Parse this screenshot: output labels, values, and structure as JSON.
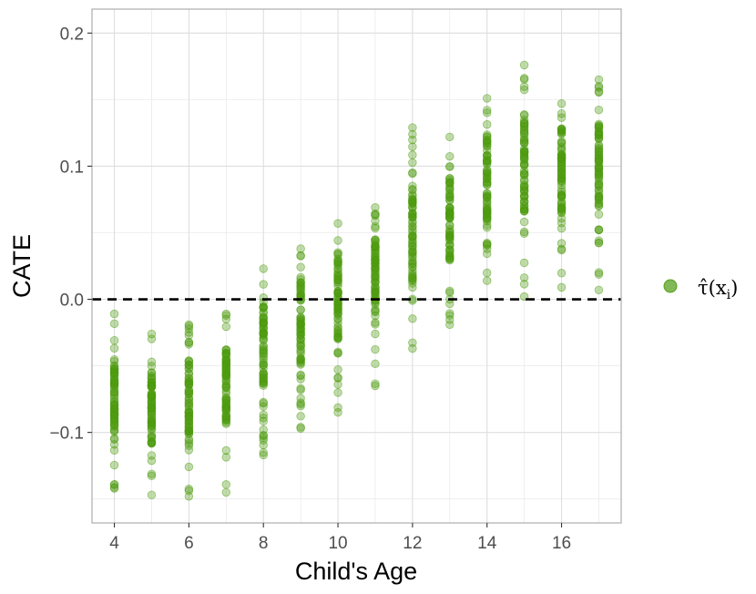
{
  "chart_data": {
    "type": "scatter",
    "title": "",
    "xlabel": "Child's Age",
    "ylabel": "CATE",
    "xlim": [
      3.4,
      17.6
    ],
    "ylim": [
      -0.168,
      0.218
    ],
    "x_ticks": [
      4,
      6,
      8,
      10,
      12,
      14,
      16
    ],
    "x_tick_labels": [
      "4",
      "6",
      "8",
      "10",
      "12",
      "14",
      "16"
    ],
    "y_ticks": [
      -0.1,
      0.0,
      0.1,
      0.2
    ],
    "y_tick_labels": [
      "−0.1",
      "0.0",
      "0.1",
      "0.2"
    ],
    "grid": true,
    "reference_line": {
      "y": 0.0,
      "style": "dashed",
      "color": "#000000"
    },
    "legend": {
      "position": "right",
      "label_main": "τ̂",
      "label_open": "(x",
      "label_sub": "i",
      "label_close": ")"
    },
    "point_color": "#4d9a0f",
    "point_alpha": 0.35,
    "series": [
      {
        "x_groups": [
          4,
          5,
          6,
          7,
          8,
          9,
          10,
          11,
          12,
          13,
          14,
          15,
          16,
          17
        ],
        "group_min": [
          -0.142,
          -0.147,
          -0.148,
          -0.145,
          -0.117,
          -0.097,
          -0.085,
          -0.065,
          -0.037,
          -0.019,
          0.014,
          0.002,
          0.009,
          0.007
        ],
        "group_max": [
          -0.011,
          -0.026,
          -0.019,
          -0.011,
          0.023,
          0.038,
          0.057,
          0.069,
          0.129,
          0.122,
          0.151,
          0.176,
          0.147,
          0.165
        ],
        "group_q_low": [
          -0.105,
          -0.108,
          -0.107,
          -0.095,
          -0.065,
          -0.05,
          -0.03,
          -0.01,
          0.01,
          0.03,
          0.06,
          0.065,
          0.065,
          0.07
        ],
        "group_q_high": [
          -0.045,
          -0.055,
          -0.045,
          -0.035,
          -0.005,
          0.015,
          0.03,
          0.045,
          0.08,
          0.095,
          0.125,
          0.135,
          0.13,
          0.135
        ]
      }
    ]
  }
}
